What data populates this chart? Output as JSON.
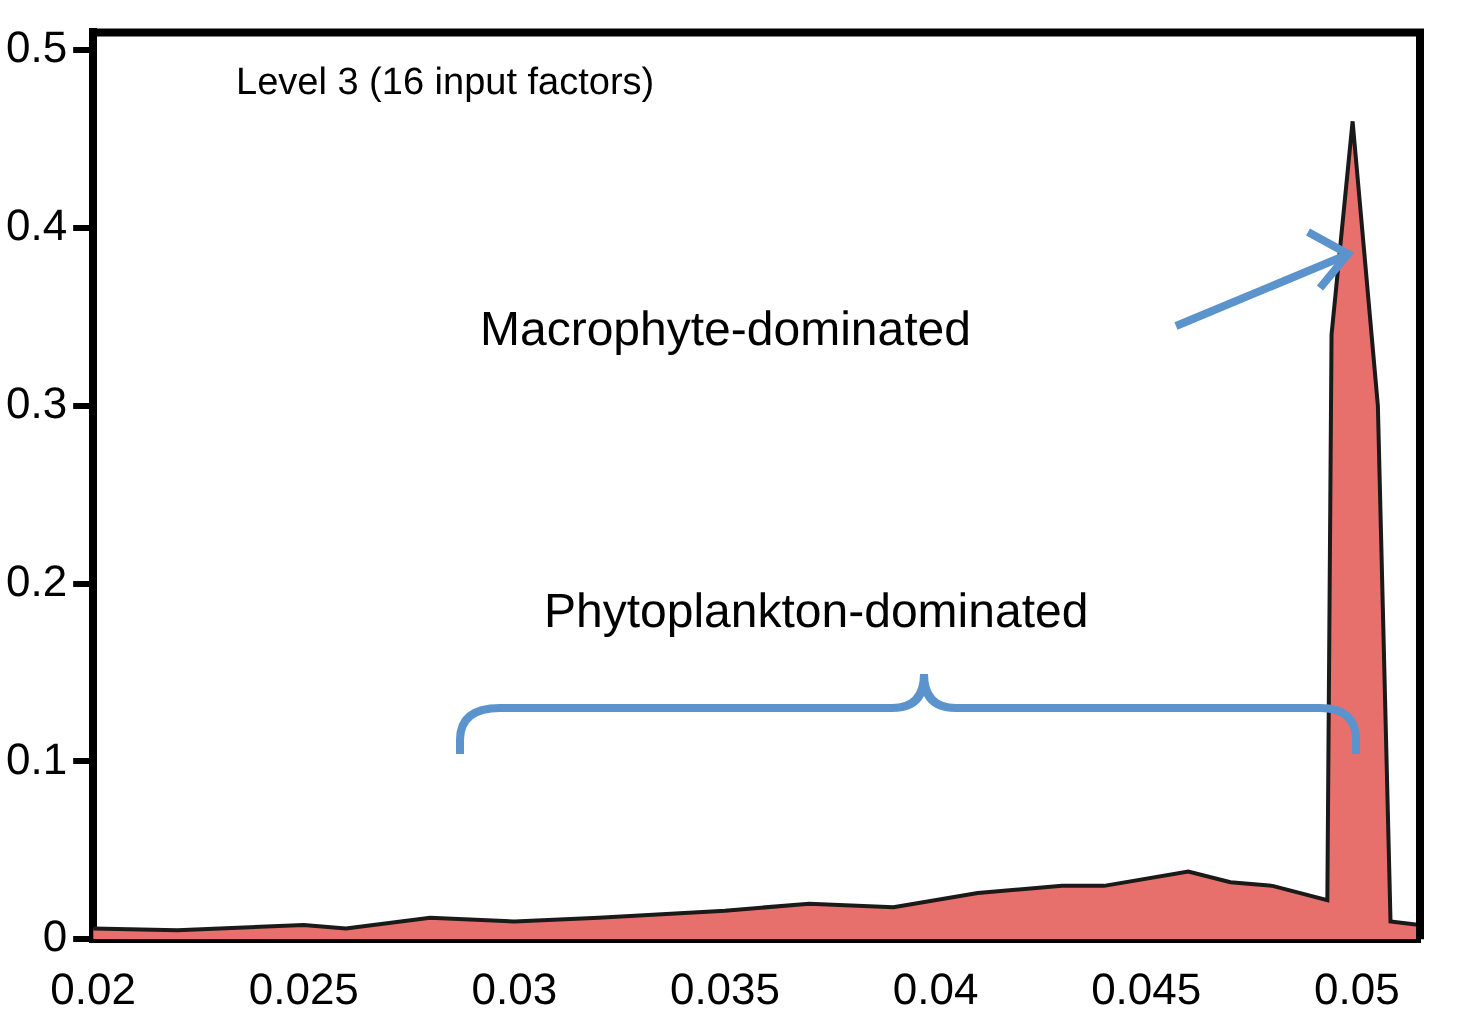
{
  "chart_data": {
    "type": "area",
    "x": [
      0.02,
      0.022,
      0.025,
      0.026,
      0.028,
      0.03,
      0.032,
      0.035,
      0.037,
      0.039,
      0.041,
      0.043,
      0.044,
      0.046,
      0.047,
      0.048,
      0.0493,
      0.0494,
      0.0499,
      0.0505,
      0.0508,
      0.0515
    ],
    "series": [
      {
        "color": "#e8706c",
        "values": [
          0.006,
          0.005,
          0.008,
          0.006,
          0.012,
          0.01,
          0.012,
          0.016,
          0.02,
          0.018,
          0.026,
          0.03,
          0.03,
          0.038,
          0.032,
          0.03,
          0.022,
          0.34,
          0.46,
          0.3,
          0.01,
          0.008
        ]
      }
    ],
    "xlim": [
      0.02,
      0.0515
    ],
    "xticks": [
      0.02,
      0.025,
      0.03,
      0.035,
      0.04,
      0.045,
      0.05
    ],
    "ylim": [
      0,
      0.51
    ],
    "yticks": [
      0,
      0.1,
      0.2,
      0.3,
      0.4,
      0.5
    ],
    "grid": false,
    "legend": false,
    "annotations": [
      "Level 3 (16 input factors)",
      "Macrophyte-dominated",
      "Phytoplankton-dominated"
    ]
  }
}
